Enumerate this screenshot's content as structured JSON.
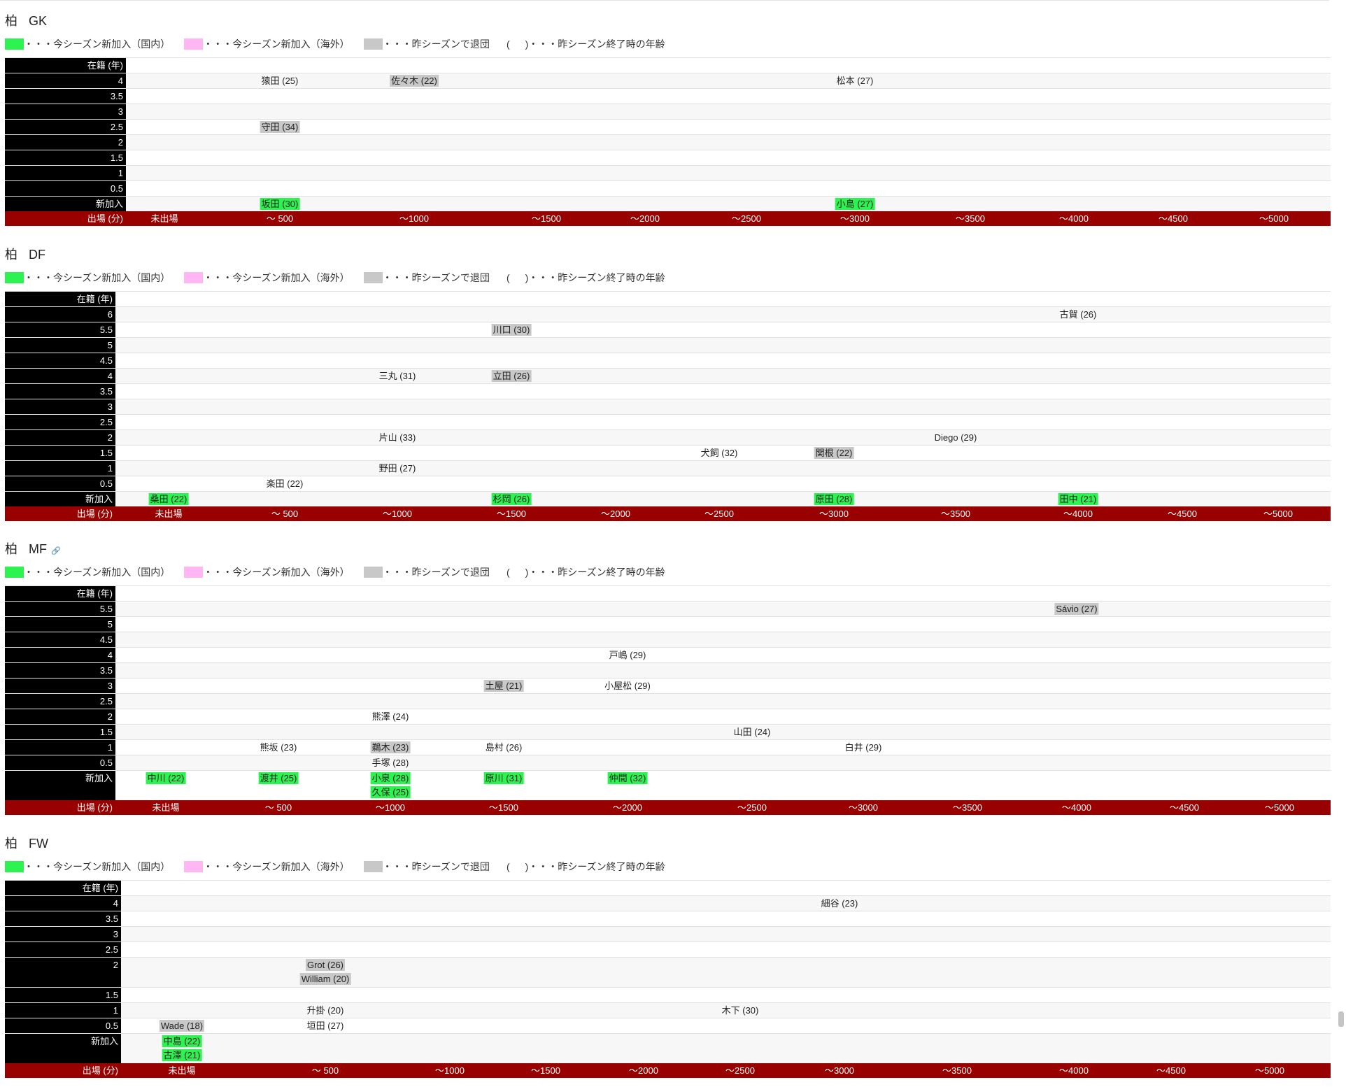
{
  "colors": {
    "new_domestic": "#2cf34f",
    "new_foreign": "#ffb6f3",
    "left": "#c8c8c8",
    "axis_bar": "#990000",
    "label_bg": "#000000"
  },
  "sections": [
    {
      "club": "柏",
      "position": "GK",
      "has_link_icon": false,
      "legend": {
        "new_domestic": "・・・今シーズン新加入（国内）",
        "new_foreign": "・・・今シーズン新加入（海外）",
        "left": "・・・昨シーズンで退団",
        "paren_mark": "(",
        "age_note": ")・・・昨シーズン終了時の年齢"
      },
      "header_label": "在籍 (年)",
      "rows": [
        {
          "label": "4",
          "players": [
            {
              "name": "猿田 (25)",
              "minutes": 500,
              "status": "normal"
            },
            {
              "name": "佐々木 (22)",
              "minutes": 1000,
              "status": "left"
            },
            {
              "name": "松本 (27)",
              "minutes": 3000,
              "status": "normal"
            }
          ]
        },
        {
          "label": "3.5",
          "players": []
        },
        {
          "label": "3",
          "players": []
        },
        {
          "label": "2.5",
          "players": [
            {
              "name": "守田 (34)",
              "minutes": 500,
              "status": "left"
            }
          ]
        },
        {
          "label": "2",
          "players": []
        },
        {
          "label": "1.5",
          "players": []
        },
        {
          "label": "1",
          "players": []
        },
        {
          "label": "0.5",
          "players": []
        },
        {
          "label": "新加入",
          "players": [
            {
              "name": "坂田 (30)",
              "minutes": 500,
              "status": "new"
            },
            {
              "name": "小島 (27)",
              "minutes": 3000,
              "status": "new"
            }
          ]
        }
      ],
      "axis_label": "出場 (分)",
      "ticks": [
        "未出場",
        "～ 500",
        "～1000",
        "～1500",
        "～2000",
        "～2500",
        "～3000",
        "～3500",
        "～4000",
        "～4500",
        "～5000"
      ]
    },
    {
      "club": "柏",
      "position": "DF",
      "has_link_icon": false,
      "legend": {
        "new_domestic": "・・・今シーズン新加入（国内）",
        "new_foreign": "・・・今シーズン新加入（海外）",
        "left": "・・・昨シーズンで退団",
        "paren_mark": "(",
        "age_note": ")・・・昨シーズン終了時の年齢"
      },
      "header_label": "在籍 (年)",
      "rows": [
        {
          "label": "6",
          "players": [
            {
              "name": "古賀 (26)",
              "minutes": 4000,
              "status": "normal"
            }
          ]
        },
        {
          "label": "5.5",
          "players": [
            {
              "name": "川口 (30)",
              "minutes": 1500,
              "status": "left"
            }
          ]
        },
        {
          "label": "5",
          "players": []
        },
        {
          "label": "4.5",
          "players": []
        },
        {
          "label": "4",
          "players": [
            {
              "name": "三丸 (31)",
              "minutes": 1000,
              "status": "normal"
            },
            {
              "name": "立田 (26)",
              "minutes": 1500,
              "status": "left"
            }
          ]
        },
        {
          "label": "3.5",
          "players": []
        },
        {
          "label": "3",
          "players": []
        },
        {
          "label": "2.5",
          "players": []
        },
        {
          "label": "2",
          "players": [
            {
              "name": "片山 (33)",
              "minutes": 1000,
              "status": "normal"
            },
            {
              "name": "Diego (29)",
              "minutes": 3500,
              "status": "normal"
            }
          ]
        },
        {
          "label": "1.5",
          "players": [
            {
              "name": "犬飼 (32)",
              "minutes": 2500,
              "status": "normal"
            },
            {
              "name": "関根 (22)",
              "minutes": 3000,
              "status": "left"
            }
          ]
        },
        {
          "label": "1",
          "players": [
            {
              "name": "野田 (27)",
              "minutes": 1000,
              "status": "normal"
            }
          ]
        },
        {
          "label": "0.5",
          "players": [
            {
              "name": "楽田 (22)",
              "minutes": 500,
              "status": "normal"
            }
          ]
        },
        {
          "label": "新加入",
          "players": [
            {
              "name": "桑田 (22)",
              "minutes": 0,
              "status": "new"
            },
            {
              "name": "杉岡 (26)",
              "minutes": 1500,
              "status": "new"
            },
            {
              "name": "原田 (28)",
              "minutes": 3000,
              "status": "new"
            },
            {
              "name": "田中 (21)",
              "minutes": 4000,
              "status": "new"
            }
          ]
        }
      ],
      "axis_label": "出場 (分)",
      "ticks": [
        "未出場",
        "～ 500",
        "～1000",
        "～1500",
        "～2000",
        "～2500",
        "～3000",
        "～3500",
        "～4000",
        "～4500",
        "～5000"
      ]
    },
    {
      "club": "柏",
      "position": "MF",
      "has_link_icon": true,
      "legend": {
        "new_domestic": "・・・今シーズン新加入（国内）",
        "new_foreign": "・・・今シーズン新加入（海外）",
        "left": "・・・昨シーズンで退団",
        "paren_mark": "(",
        "age_note": ")・・・昨シーズン終了時の年齢"
      },
      "header_label": "在籍 (年)",
      "rows": [
        {
          "label": "5.5",
          "players": [
            {
              "name": "Sávio (27)",
              "minutes": 4000,
              "status": "left"
            }
          ]
        },
        {
          "label": "5",
          "players": []
        },
        {
          "label": "4.5",
          "players": []
        },
        {
          "label": "4",
          "players": [
            {
              "name": "戸嶋 (29)",
              "minutes": 2000,
              "status": "normal"
            }
          ]
        },
        {
          "label": "3.5",
          "players": []
        },
        {
          "label": "3",
          "players": [
            {
              "name": "土屋 (21)",
              "minutes": 1500,
              "status": "left"
            },
            {
              "name": "小屋松 (29)",
              "minutes": 2000,
              "status": "normal"
            }
          ]
        },
        {
          "label": "2.5",
          "players": []
        },
        {
          "label": "2",
          "players": [
            {
              "name": "熊澤 (24)",
              "minutes": 1000,
              "status": "normal"
            }
          ]
        },
        {
          "label": "1.5",
          "players": [
            {
              "name": "山田 (24)",
              "minutes": 2500,
              "status": "normal"
            }
          ]
        },
        {
          "label": "1",
          "players": [
            {
              "name": "熊坂 (23)",
              "minutes": 500,
              "status": "normal"
            },
            {
              "name": "鵜木 (23)",
              "minutes": 1000,
              "status": "left"
            },
            {
              "name": "島村 (26)",
              "minutes": 1500,
              "status": "normal"
            },
            {
              "name": "白井 (29)",
              "minutes": 3000,
              "status": "normal"
            }
          ]
        },
        {
          "label": "0.5",
          "players": [
            {
              "name": "手塚 (28)",
              "minutes": 1000,
              "status": "normal"
            }
          ]
        },
        {
          "label": "新加入",
          "players": [
            {
              "name": "中川 (22)",
              "minutes": 0,
              "status": "new"
            },
            {
              "name": "渡井 (25)",
              "minutes": 500,
              "status": "new"
            },
            {
              "name": "小泉 (28)",
              "minutes": 1000,
              "status": "new"
            },
            {
              "name": "久保 (25)",
              "minutes": 1000,
              "status": "new"
            },
            {
              "name": "原川 (31)",
              "minutes": 1500,
              "status": "new"
            },
            {
              "name": "仲間 (32)",
              "minutes": 2000,
              "status": "new"
            }
          ]
        }
      ],
      "axis_label": "出場 (分)",
      "ticks": [
        "未出場",
        "～ 500",
        "～1000",
        "～1500",
        "～2000",
        "～2500",
        "～3000",
        "～3500",
        "～4000",
        "～4500",
        "～5000"
      ]
    },
    {
      "club": "柏",
      "position": "FW",
      "has_link_icon": false,
      "legend": {
        "new_domestic": "・・・今シーズン新加入（国内）",
        "new_foreign": "・・・今シーズン新加入（海外）",
        "left": "・・・昨シーズンで退団",
        "paren_mark": "(",
        "age_note": ")・・・昨シーズン終了時の年齢"
      },
      "header_label": "在籍 (年)",
      "rows": [
        {
          "label": "4",
          "players": [
            {
              "name": "細谷 (23)",
              "minutes": 3000,
              "status": "normal"
            }
          ]
        },
        {
          "label": "3.5",
          "players": []
        },
        {
          "label": "3",
          "players": []
        },
        {
          "label": "2.5",
          "players": []
        },
        {
          "label": "2",
          "players": [
            {
              "name": "Grot (26)",
              "minutes": 500,
              "status": "left"
            },
            {
              "name": "William (20)",
              "minutes": 500,
              "status": "left"
            }
          ]
        },
        {
          "label": "1.5",
          "players": []
        },
        {
          "label": "1",
          "players": [
            {
              "name": "升掛 (20)",
              "minutes": 500,
              "status": "normal"
            },
            {
              "name": "木下 (30)",
              "minutes": 2500,
              "status": "normal"
            }
          ]
        },
        {
          "label": "0.5",
          "players": [
            {
              "name": "Wade (18)",
              "minutes": 0,
              "status": "left"
            },
            {
              "name": "垣田 (27)",
              "minutes": 500,
              "status": "normal"
            }
          ]
        },
        {
          "label": "新加入",
          "players": [
            {
              "name": "中島 (22)",
              "minutes": 0,
              "status": "new"
            },
            {
              "name": "古澤 (21)",
              "minutes": 0,
              "status": "new"
            }
          ]
        }
      ],
      "axis_label": "出場 (分)",
      "ticks": [
        "未出場",
        "～ 500",
        "～1000",
        "～1500",
        "～2000",
        "～2500",
        "～3000",
        "～3500",
        "～4000",
        "～4500",
        "～5000"
      ]
    }
  ]
}
